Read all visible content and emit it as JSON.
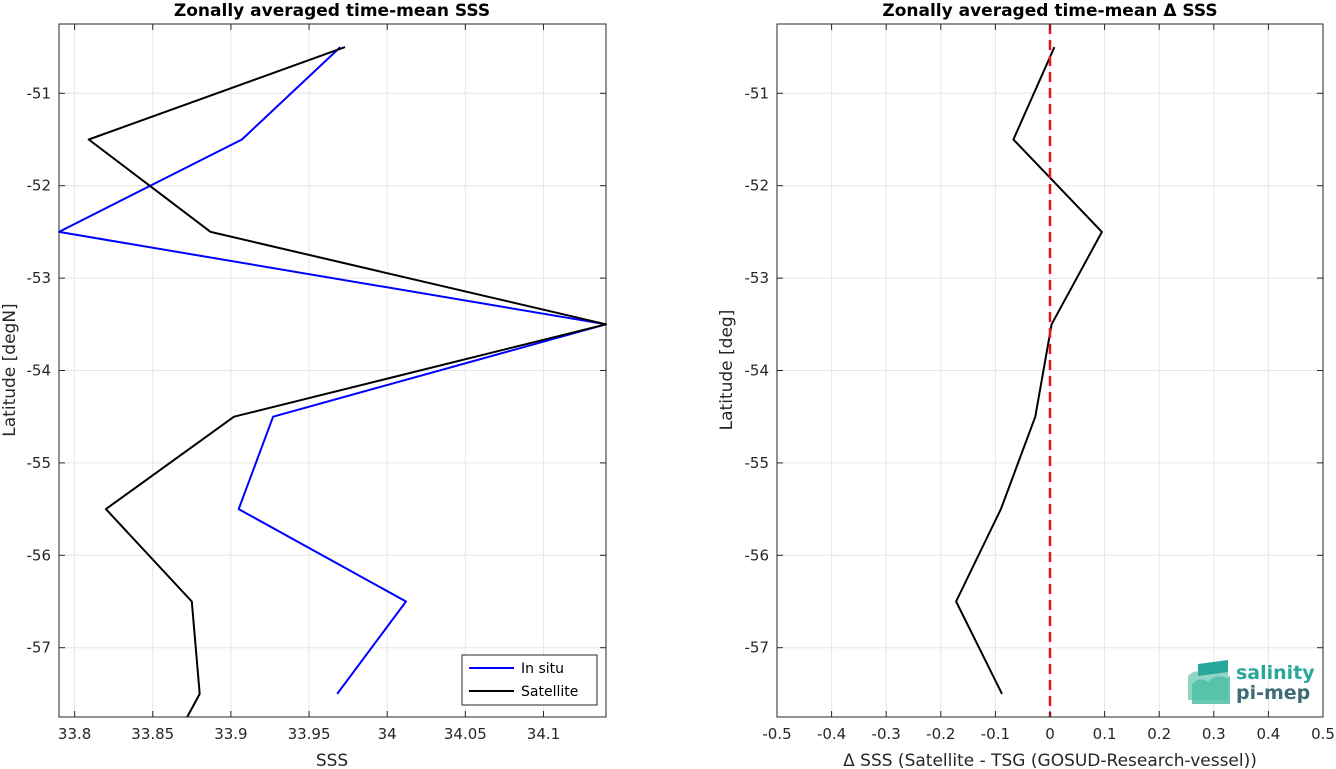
{
  "chart_data": [
    {
      "type": "line",
      "title": "Zonally averaged time-mean SSS",
      "xlabel": "SSS",
      "ylabel": "Latitude [degN]",
      "xlim": [
        33.79,
        34.14
      ],
      "ylim": [
        -57.75,
        -50.25
      ],
      "xticks": [
        33.8,
        33.85,
        33.9,
        33.95,
        34,
        34.05,
        34.1
      ],
      "xtick_labels": [
        "33.8",
        "33.85",
        "33.9",
        "33.95",
        "34",
        "34.05",
        "34.1"
      ],
      "yticks": [
        -57,
        -56,
        -55,
        -54,
        -53,
        -52,
        -51
      ],
      "ytick_labels": [
        "-57",
        "-56",
        "-55",
        "-54",
        "-53",
        "-52",
        "-51"
      ],
      "grid": true,
      "legend_position": "bottom-right",
      "series": [
        {
          "name": "In situ",
          "color": "#0000ff",
          "x": [
            33.97,
            33.907,
            33.79,
            34.14,
            33.927,
            33.905,
            34.012,
            33.968
          ],
          "y": [
            -50.5,
            -51.5,
            -52.5,
            -53.5,
            -54.5,
            -55.5,
            -56.5,
            -57.5
          ]
        },
        {
          "name": "Satellite",
          "color": "#000000",
          "x": [
            33.973,
            33.809,
            33.887,
            34.14,
            33.902,
            33.82,
            33.875,
            33.88,
            33.872
          ],
          "y": [
            -50.5,
            -51.5,
            -52.5,
            -53.5,
            -54.5,
            -55.5,
            -56.5,
            -57.5,
            -57.75
          ]
        }
      ]
    },
    {
      "type": "line",
      "title": "Zonally averaged time-mean Δ SSS",
      "xlabel": "Δ SSS (Satellite - TSG (GOSUD-Research-vessel))",
      "ylabel": "Latitude [deg]",
      "xlim": [
        -0.5,
        0.5
      ],
      "ylim": [
        -57.75,
        -50.25
      ],
      "xticks": [
        -0.5,
        -0.4,
        -0.3,
        -0.2,
        -0.1,
        0,
        0.1,
        0.2,
        0.3,
        0.4,
        0.5
      ],
      "xtick_labels": [
        "-0.5",
        "-0.4",
        "-0.3",
        "-0.2",
        "-0.1",
        "0",
        "0.1",
        "0.2",
        "0.3",
        "0.4",
        "0.5"
      ],
      "yticks": [
        -57,
        -56,
        -55,
        -54,
        -53,
        -52,
        -51
      ],
      "ytick_labels": [
        "-57",
        "-56",
        "-55",
        "-54",
        "-53",
        "-52",
        "-51"
      ],
      "grid": true,
      "series": [
        {
          "color": "#000000",
          "x": [
            0.008,
            -0.067,
            0.095,
            0.003,
            -0.027,
            -0.09,
            -0.172,
            -0.088
          ],
          "y": [
            -50.5,
            -51.5,
            -52.5,
            -53.5,
            -54.5,
            -55.5,
            -56.5,
            -57.5
          ]
        }
      ],
      "reference_line": {
        "x": 0,
        "color": "#e8141b",
        "style": "dashed"
      }
    }
  ],
  "logo": {
    "line1": "salinity",
    "line2": "pi-mep"
  }
}
